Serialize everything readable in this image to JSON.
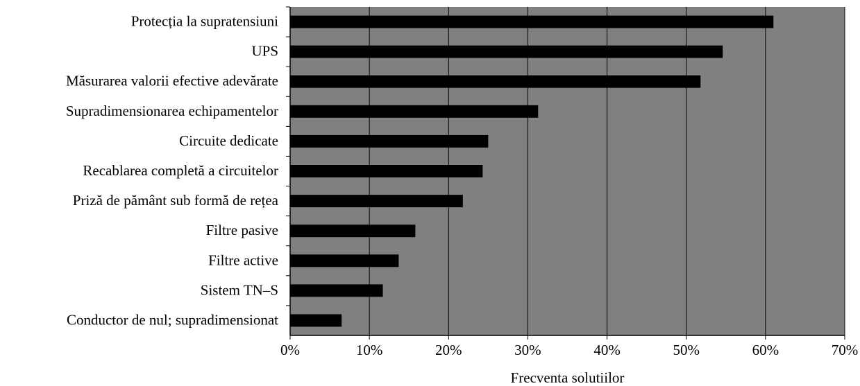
{
  "chart_data": {
    "type": "bar",
    "orientation": "horizontal",
    "title": "",
    "xlabel": "Frecventa solutiilor",
    "ylabel": "",
    "xlim": [
      0,
      70
    ],
    "x_tick_step": 10,
    "tick_suffix": "%",
    "grid": "vertical",
    "categories": [
      "Protecția la supratensiuni",
      "UPS",
      "Măsurarea valorii efective adevărate",
      "Supradimensionarea echipamentelor",
      "Circuite dedicate",
      "Recablarea completă a circuitelor",
      "Priză de pământ sub formă de rețea",
      "Filtre pasive",
      "Filtre active",
      "Sistem TN–S",
      "Conductor de nul; supradimensionat"
    ],
    "values": [
      61,
      54.6,
      51.8,
      31.3,
      25,
      24.3,
      21.8,
      15.8,
      13.7,
      11.7,
      6.5
    ],
    "colors": {
      "plot_background": "#808080",
      "bar": "#000000",
      "grid": "#000000",
      "axis": "#000000"
    }
  }
}
